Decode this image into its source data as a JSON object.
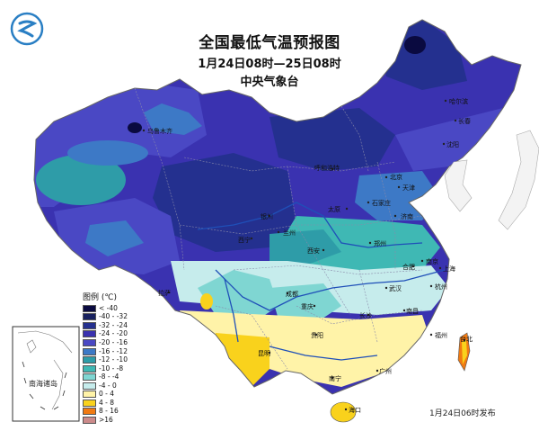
{
  "title": "全国最低气温预报图",
  "period": "1月24日08时—25日08时",
  "issuer": "中央气象台",
  "release": "1月24日06时发布",
  "legend": {
    "title": "图例 (℃)",
    "items": [
      {
        "label": "< -40",
        "color": "#0a0a40"
      },
      {
        "label": "-40 - -32",
        "color": "#17205e"
      },
      {
        "label": "-32 - -24",
        "color": "#24308f"
      },
      {
        "label": "-24 - -20",
        "color": "#3a32b0"
      },
      {
        "label": "-20 - -16",
        "color": "#4a48c4"
      },
      {
        "label": "-16 - -12",
        "color": "#3d79c6"
      },
      {
        "label": "-12 - -10",
        "color": "#2e9ca8"
      },
      {
        "label": "-10 - -8",
        "color": "#3fb8b4"
      },
      {
        "label": "-8 - -4",
        "color": "#7fd6d2"
      },
      {
        "label": "-4 - 0",
        "color": "#c6ecec"
      },
      {
        "label": "0 - 4",
        "color": "#fff3a8"
      },
      {
        "label": "4 - 8",
        "color": "#f9d21c"
      },
      {
        "label": "8 - 16",
        "color": "#f07a12"
      },
      {
        "label": ">16",
        "color": "#cc8b8b"
      }
    ]
  },
  "cities": [
    {
      "name": "哈尔滨"
    },
    {
      "name": "长春"
    },
    {
      "name": "沈阳"
    },
    {
      "name": "呼和浩特"
    },
    {
      "name": "北京"
    },
    {
      "name": "天津"
    },
    {
      "name": "石家庄"
    },
    {
      "name": "太原"
    },
    {
      "name": "济南"
    },
    {
      "name": "银川"
    },
    {
      "name": "兰州"
    },
    {
      "name": "西宁"
    },
    {
      "name": "西安"
    },
    {
      "name": "郑州"
    },
    {
      "name": "合肥"
    },
    {
      "name": "南京"
    },
    {
      "name": "上海"
    },
    {
      "name": "杭州"
    },
    {
      "name": "武汉"
    },
    {
      "name": "成都"
    },
    {
      "name": "重庆"
    },
    {
      "name": "长沙"
    },
    {
      "name": "南昌"
    },
    {
      "name": "福州"
    },
    {
      "name": "贵阳"
    },
    {
      "name": "昆明"
    },
    {
      "name": "南宁"
    },
    {
      "name": "广州"
    },
    {
      "name": "台北"
    },
    {
      "name": "海口"
    },
    {
      "name": "拉萨"
    },
    {
      "name": "乌鲁木齐"
    }
  ],
  "inset": {
    "label": "南海诸岛"
  },
  "logo": {
    "icon": "cma-logo-icon",
    "color": "#2a7fc4"
  }
}
